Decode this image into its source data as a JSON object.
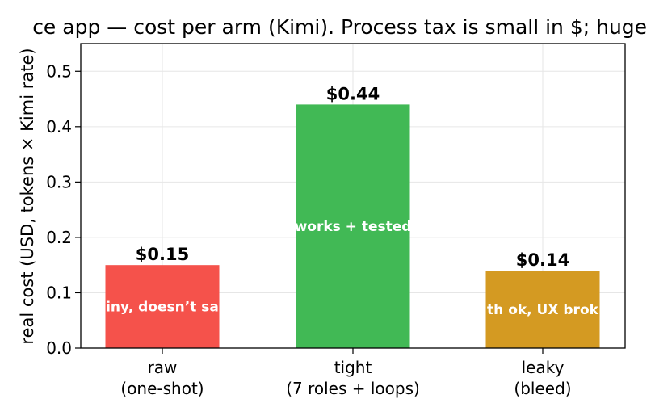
{
  "chart_data": {
    "type": "bar",
    "title": "ce app — cost per arm (Kimi). Process tax is small in $; huge in",
    "xlabel": "",
    "ylabel": "real cost (USD, tokens × Kimi rate)",
    "ylim": [
      0,
      0.55
    ],
    "yticks": [
      "0.0",
      "0.1",
      "0.2",
      "0.3",
      "0.4",
      "0.5"
    ],
    "grid": true,
    "categories": [
      [
        "raw",
        "(one-shot)"
      ],
      [
        "tight",
        "(7 roles + loops)"
      ],
      [
        "leaky",
        "(bleed)"
      ]
    ],
    "values": [
      0.15,
      0.44,
      0.14
    ],
    "value_labels": [
      "$0.15",
      "$0.44",
      "$0.14"
    ],
    "bar_annotations": [
      "iny, doesn’t sa",
      "works + tested",
      "th ok, UX brok"
    ],
    "colors": [
      "#f5524b",
      "#41b955",
      "#d49a22"
    ]
  }
}
